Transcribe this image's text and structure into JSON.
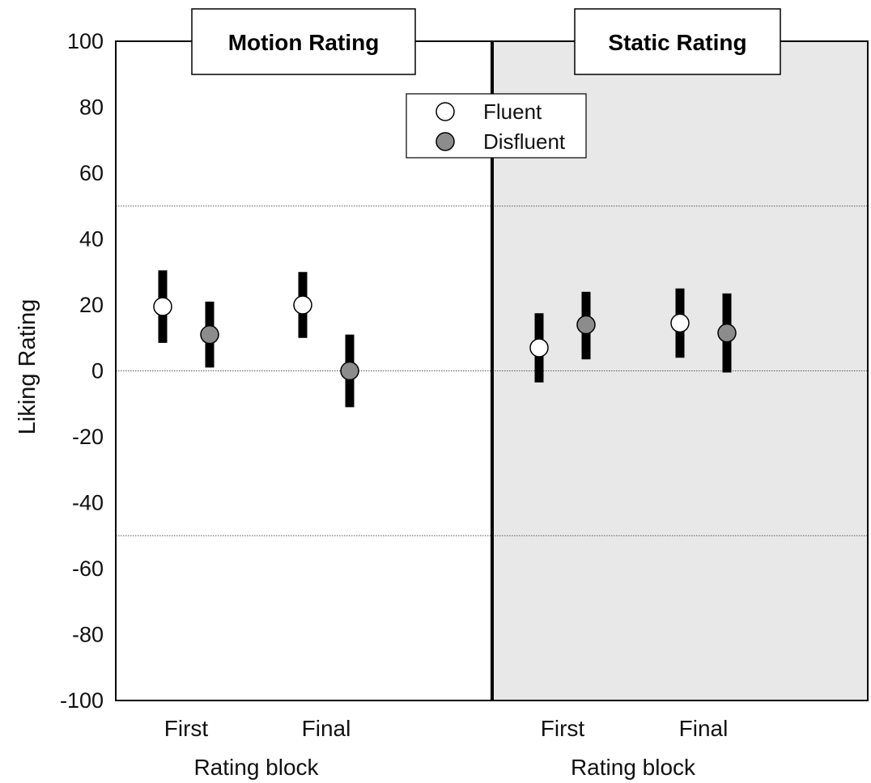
{
  "chart_data": {
    "type": "scatter",
    "ylabel": "Liking Rating",
    "ylim": [
      -100,
      100
    ],
    "yticks": [
      "100",
      "80",
      "60",
      "40",
      "20",
      "0",
      "-20",
      "-40",
      "-60",
      "-80",
      "-100"
    ],
    "reference_lines": [
      50,
      0,
      -50
    ],
    "legend": {
      "placement": "top-center",
      "entries": [
        {
          "label": "Fluent",
          "color": "#ffffff"
        },
        {
          "label": "Disfluent",
          "color": "#8c8c8c"
        }
      ]
    },
    "panels": [
      {
        "title": "Motion Rating",
        "background": "#ffffff",
        "xlabel": "Rating block",
        "categories": [
          "First",
          "Final"
        ],
        "series": [
          {
            "name": "Fluent",
            "color": "#ffffff",
            "values": [
              19.5,
              20
            ],
            "error_low": [
              8.5,
              10
            ],
            "error_high": [
              30.5,
              30
            ]
          },
          {
            "name": "Disfluent",
            "color": "#8c8c8c",
            "values": [
              11,
              0
            ],
            "error_low": [
              1,
              -11
            ],
            "error_high": [
              21,
              11
            ]
          }
        ]
      },
      {
        "title": "Static Rating",
        "background": "#e8e8e8",
        "xlabel": "Rating block",
        "categories": [
          "First",
          "Final"
        ],
        "series": [
          {
            "name": "Fluent",
            "color": "#ffffff",
            "values": [
              7,
              14.5
            ],
            "error_low": [
              -3.5,
              4
            ],
            "error_high": [
              17.5,
              25
            ]
          },
          {
            "name": "Disfluent",
            "color": "#8c8c8c",
            "values": [
              14,
              11.5
            ],
            "error_low": [
              3.5,
              -0.5
            ],
            "error_high": [
              24,
              23.5
            ]
          }
        ]
      }
    ]
  }
}
